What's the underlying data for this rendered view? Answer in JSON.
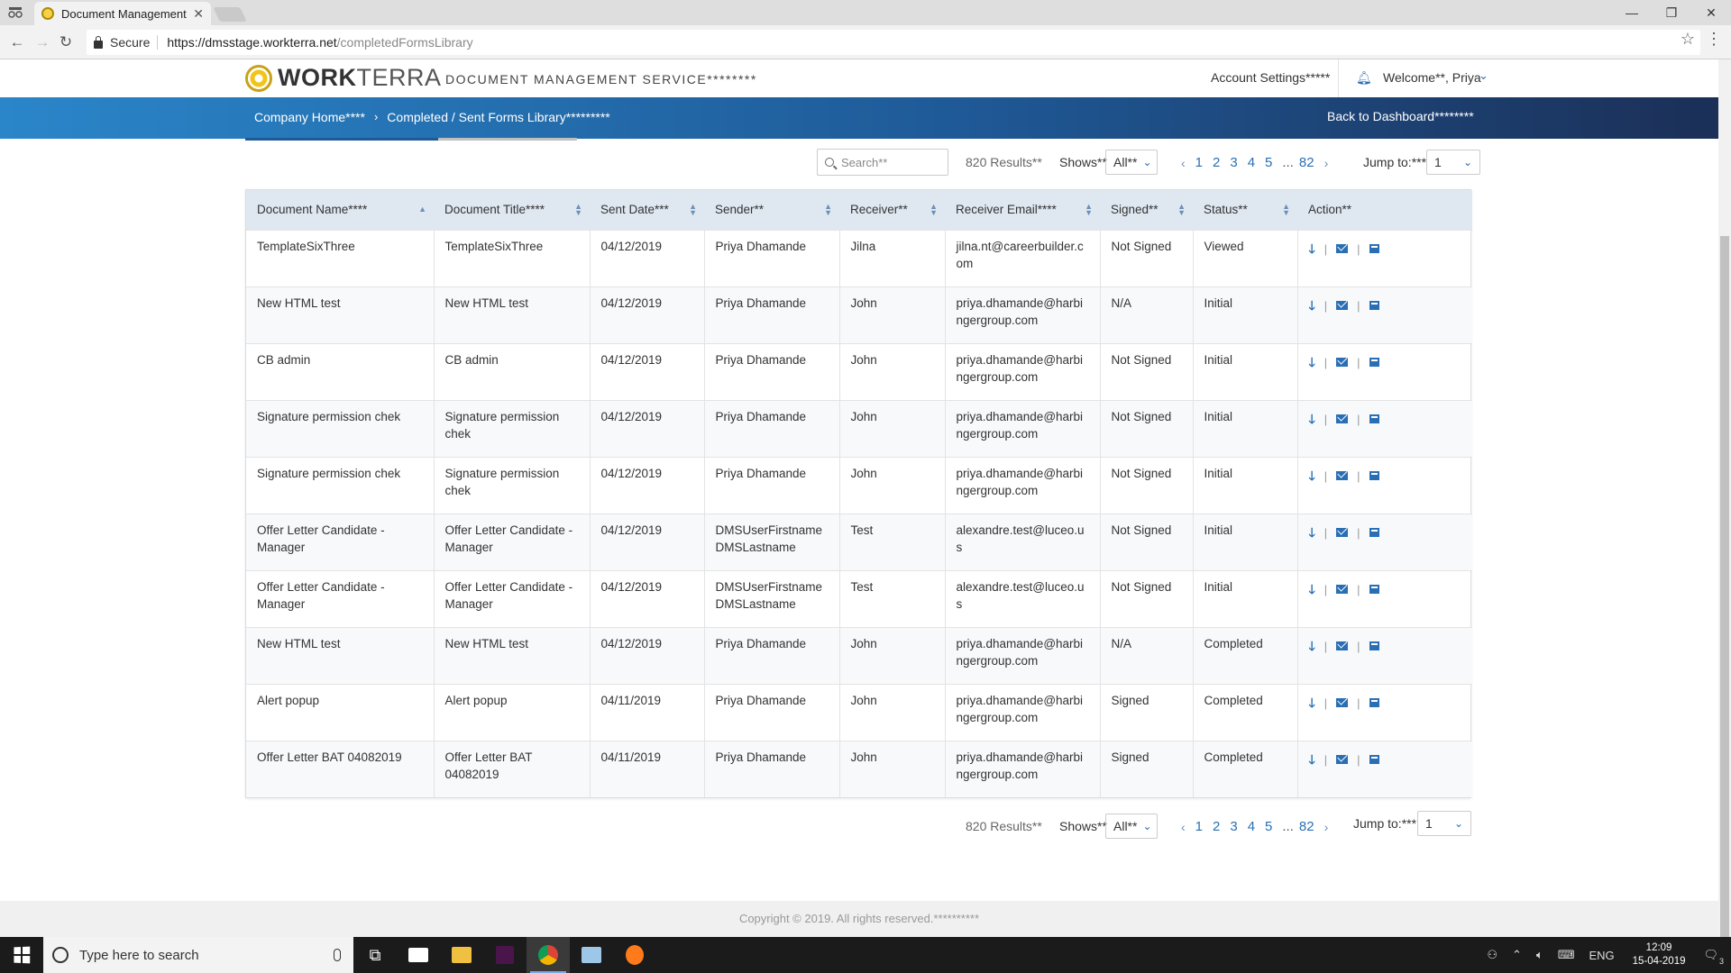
{
  "browser": {
    "tab_title": "Document Management",
    "secure_label": "Secure",
    "url_host": "https://dmsstage.workterra.net",
    "url_path": "/completedFormsLibrary"
  },
  "header": {
    "logo_bold": "WORK",
    "logo_light": "TERRA",
    "service_title": "DOCUMENT MANAGEMENT SERVICE********",
    "account_settings": "Account Settings*****",
    "welcome": "Welcome**, Priya"
  },
  "nav": {
    "breadcrumb_home": "Company Home****",
    "breadcrumb_current": "Completed / Sent Forms Library*********",
    "back_label": "Back to Dashboard********"
  },
  "toolbar": {
    "search_placeholder": "Search**",
    "results": "820 Results**",
    "shows_label": "Shows**",
    "shows_value": "All**",
    "pages": [
      "1",
      "2",
      "3",
      "4",
      "5"
    ],
    "dots": "...",
    "last_page": "82",
    "jump_label": "Jump to:***",
    "jump_value": "1"
  },
  "table": {
    "columns": [
      "Document Name****",
      "Document Title****",
      "Sent Date***",
      "Sender**",
      "Receiver**",
      "Receiver Email****",
      "Signed**",
      "Status**",
      "Action**"
    ],
    "rows": [
      [
        "TemplateSixThree",
        "TemplateSixThree",
        "04/12/2019",
        "Priya Dhamande",
        "Jilna",
        "jilna.nt@careerbuilder.com",
        "Not Signed",
        "Viewed"
      ],
      [
        "New HTML test",
        "New HTML test",
        "04/12/2019",
        "Priya Dhamande",
        "John",
        "priya.dhamande@harbingergroup.com",
        "N/A",
        "Initial"
      ],
      [
        "CB admin",
        "CB admin",
        "04/12/2019",
        "Priya Dhamande",
        "John",
        "priya.dhamande@harbingergroup.com",
        "Not Signed",
        "Initial"
      ],
      [
        "Signature permission chek",
        "Signature permission chek",
        "04/12/2019",
        "Priya Dhamande",
        "John",
        "priya.dhamande@harbingergroup.com",
        "Not Signed",
        "Initial"
      ],
      [
        "Signature permission chek",
        "Signature permission chek",
        "04/12/2019",
        "Priya Dhamande",
        "John",
        "priya.dhamande@harbingergroup.com",
        "Not Signed",
        "Initial"
      ],
      [
        "Offer Letter Candidate - Manager",
        "Offer Letter Candidate - Manager",
        "04/12/2019",
        "DMSUserFirstname DMSLastname",
        "Test",
        "alexandre.test@luceo.us",
        "Not Signed",
        "Initial"
      ],
      [
        "Offer Letter Candidate - Manager",
        "Offer Letter Candidate - Manager",
        "04/12/2019",
        "DMSUserFirstname DMSLastname",
        "Test",
        "alexandre.test@luceo.us",
        "Not Signed",
        "Initial"
      ],
      [
        "New HTML test",
        "New HTML test",
        "04/12/2019",
        "Priya Dhamande",
        "John",
        "priya.dhamande@harbingergroup.com",
        "N/A",
        "Completed"
      ],
      [
        "Alert popup",
        "Alert popup",
        "04/11/2019",
        "Priya Dhamande",
        "John",
        "priya.dhamande@harbingergroup.com",
        "Signed",
        "Completed"
      ],
      [
        "Offer Letter BAT 04082019",
        "Offer Letter BAT 04082019",
        "04/11/2019",
        "Priya Dhamande",
        "John",
        "priya.dhamande@harbingergroup.com",
        "Signed",
        "Completed"
      ]
    ],
    "action_icons": [
      "download-icon",
      "email-icon",
      "archive-icon"
    ]
  },
  "footer": {
    "copyright": "Copyright © 2019. All rights reserved.**********"
  },
  "taskbar": {
    "search_placeholder": "Type here to search",
    "lang": "ENG",
    "time": "12:09",
    "date": "15-04-2019",
    "notif_count": "3"
  },
  "colors": {
    "accent": "#2a6fb3",
    "nav_start": "#2a86c9",
    "nav_end": "#1b2f57",
    "table_header": "#dfe8f1"
  }
}
